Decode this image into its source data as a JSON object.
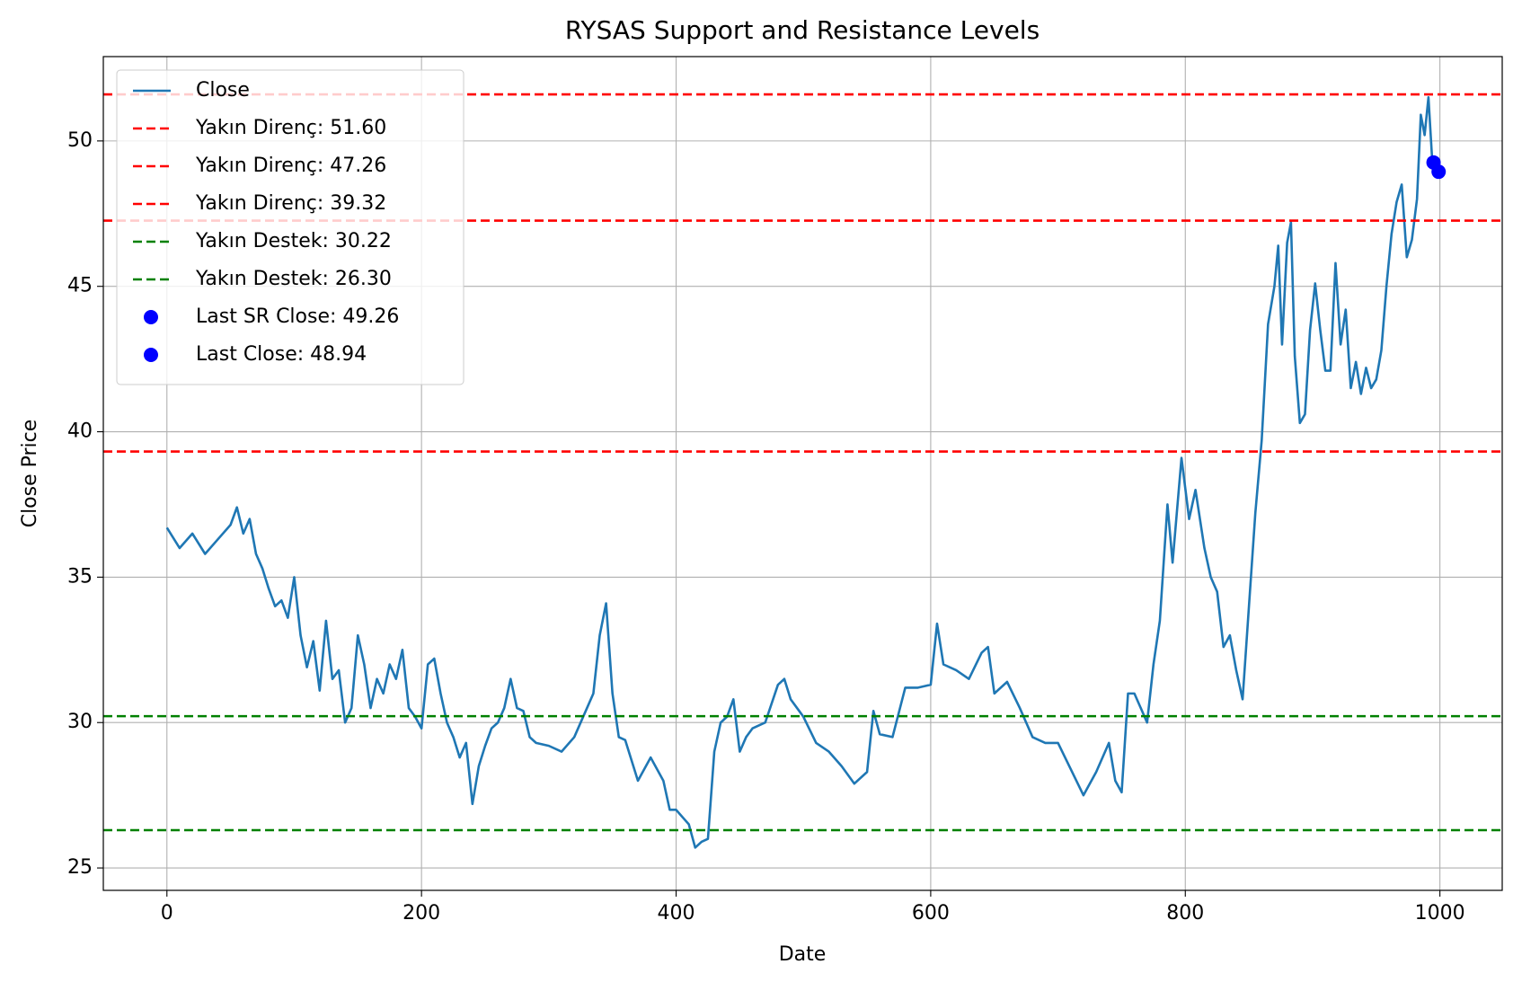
{
  "chart_data": {
    "type": "line",
    "title": "RYSAS Support and Resistance Levels",
    "x_label": "Date",
    "y_label": "Close Price",
    "xlim": [
      -49.95,
      1048.95
    ],
    "ylim": [
      24.23,
      52.9
    ],
    "xticks": [
      0,
      200,
      400,
      600,
      800,
      1000
    ],
    "yticks": [
      25,
      30,
      35,
      40,
      45,
      50
    ],
    "grid": true,
    "legend": "upper left",
    "series": [
      {
        "name": "Close",
        "color": "#1f77b4",
        "x": [
          0,
          10,
          20,
          30,
          40,
          50,
          55,
          60,
          65,
          70,
          75,
          80,
          85,
          90,
          95,
          100,
          105,
          110,
          115,
          120,
          125,
          130,
          135,
          140,
          145,
          150,
          155,
          160,
          165,
          170,
          175,
          180,
          185,
          190,
          195,
          200,
          205,
          210,
          215,
          220,
          225,
          230,
          235,
          240,
          245,
          250,
          255,
          260,
          265,
          270,
          275,
          280,
          285,
          290,
          300,
          310,
          320,
          330,
          335,
          340,
          345,
          350,
          355,
          360,
          370,
          380,
          390,
          395,
          400,
          410,
          415,
          420,
          425,
          430,
          435,
          440,
          445,
          450,
          455,
          460,
          470,
          480,
          485,
          490,
          500,
          510,
          520,
          530,
          540,
          550,
          555,
          560,
          570,
          580,
          590,
          600,
          605,
          610,
          620,
          630,
          640,
          645,
          650,
          660,
          670,
          680,
          690,
          700,
          710,
          720,
          730,
          740,
          745,
          750,
          755,
          760,
          770,
          775,
          780,
          786,
          790,
          797,
          803,
          808,
          815,
          820,
          825,
          830,
          835,
          840,
          845,
          850,
          855,
          860,
          865,
          870,
          873,
          876,
          880,
          883,
          886,
          890,
          894,
          898,
          902,
          906,
          910,
          914,
          918,
          922,
          926,
          930,
          934,
          938,
          942,
          946,
          950,
          954,
          958,
          962,
          966,
          970,
          974,
          978,
          982,
          985,
          988,
          991,
          994,
          997
        ],
        "values": [
          36.7,
          36.0,
          36.5,
          35.8,
          36.3,
          36.8,
          37.4,
          36.5,
          37.0,
          35.8,
          35.3,
          34.6,
          34.0,
          34.2,
          33.6,
          35.0,
          33.0,
          31.9,
          32.8,
          31.1,
          33.5,
          31.5,
          31.8,
          30.0,
          30.5,
          33.0,
          32.0,
          30.5,
          31.5,
          31.0,
          32.0,
          31.5,
          32.5,
          30.5,
          30.2,
          29.8,
          32.0,
          32.2,
          31.0,
          30.0,
          29.5,
          28.8,
          29.3,
          27.2,
          28.5,
          29.2,
          29.8,
          30.0,
          30.5,
          31.5,
          30.5,
          30.4,
          29.5,
          29.3,
          29.2,
          29.0,
          29.5,
          30.5,
          31.0,
          33.0,
          34.1,
          31.0,
          29.5,
          29.4,
          28.0,
          28.8,
          28.0,
          27.0,
          27.0,
          26.5,
          25.7,
          25.9,
          26.0,
          29.0,
          30.0,
          30.2,
          30.8,
          29.0,
          29.5,
          29.8,
          30.0,
          31.3,
          31.5,
          30.8,
          30.2,
          29.3,
          29.0,
          28.5,
          27.9,
          28.3,
          30.4,
          29.6,
          29.5,
          31.2,
          31.2,
          31.3,
          33.4,
          32.0,
          31.8,
          31.5,
          32.4,
          32.6,
          31.0,
          31.4,
          30.5,
          29.5,
          29.3,
          29.3,
          28.4,
          27.5,
          28.3,
          29.3,
          28.0,
          27.6,
          31.0,
          31.0,
          30.0,
          32.0,
          33.5,
          37.5,
          35.5,
          39.1,
          37.0,
          38.0,
          36.0,
          35.0,
          34.5,
          32.6,
          33.0,
          31.8,
          30.8,
          34.0,
          37.2,
          39.7,
          43.7,
          45.0,
          46.4,
          43.0,
          46.5,
          47.2,
          42.6,
          40.3,
          40.6,
          43.5,
          45.1,
          43.5,
          42.1,
          42.1,
          45.8,
          43.0,
          44.2,
          41.5,
          42.4,
          41.3,
          42.2,
          41.5,
          41.8,
          42.8,
          45.0,
          46.8,
          47.9,
          48.5,
          46.0,
          46.6,
          48.0,
          50.9,
          50.2,
          51.5,
          49.3,
          48.94
        ]
      }
    ],
    "levels": [
      {
        "name": "Yakın Direnç: 51.60",
        "value": 51.6,
        "color": "#ff0000"
      },
      {
        "name": "Yakın Direnç: 47.26",
        "value": 47.26,
        "color": "#ff0000"
      },
      {
        "name": "Yakın Direnç: 39.32",
        "value": 39.32,
        "color": "#ff0000"
      },
      {
        "name": "Yakın Destek: 30.22",
        "value": 30.22,
        "color": "#008000"
      },
      {
        "name": "Yakın Destek: 26.30",
        "value": 26.3,
        "color": "#008000"
      }
    ],
    "points": [
      {
        "name": "Last SR Close: 49.26",
        "x": 995,
        "value": 49.26,
        "color": "#0000ff"
      },
      {
        "name": "Last Close: 48.94",
        "x": 999,
        "value": 48.94,
        "color": "#0000ff"
      }
    ]
  }
}
